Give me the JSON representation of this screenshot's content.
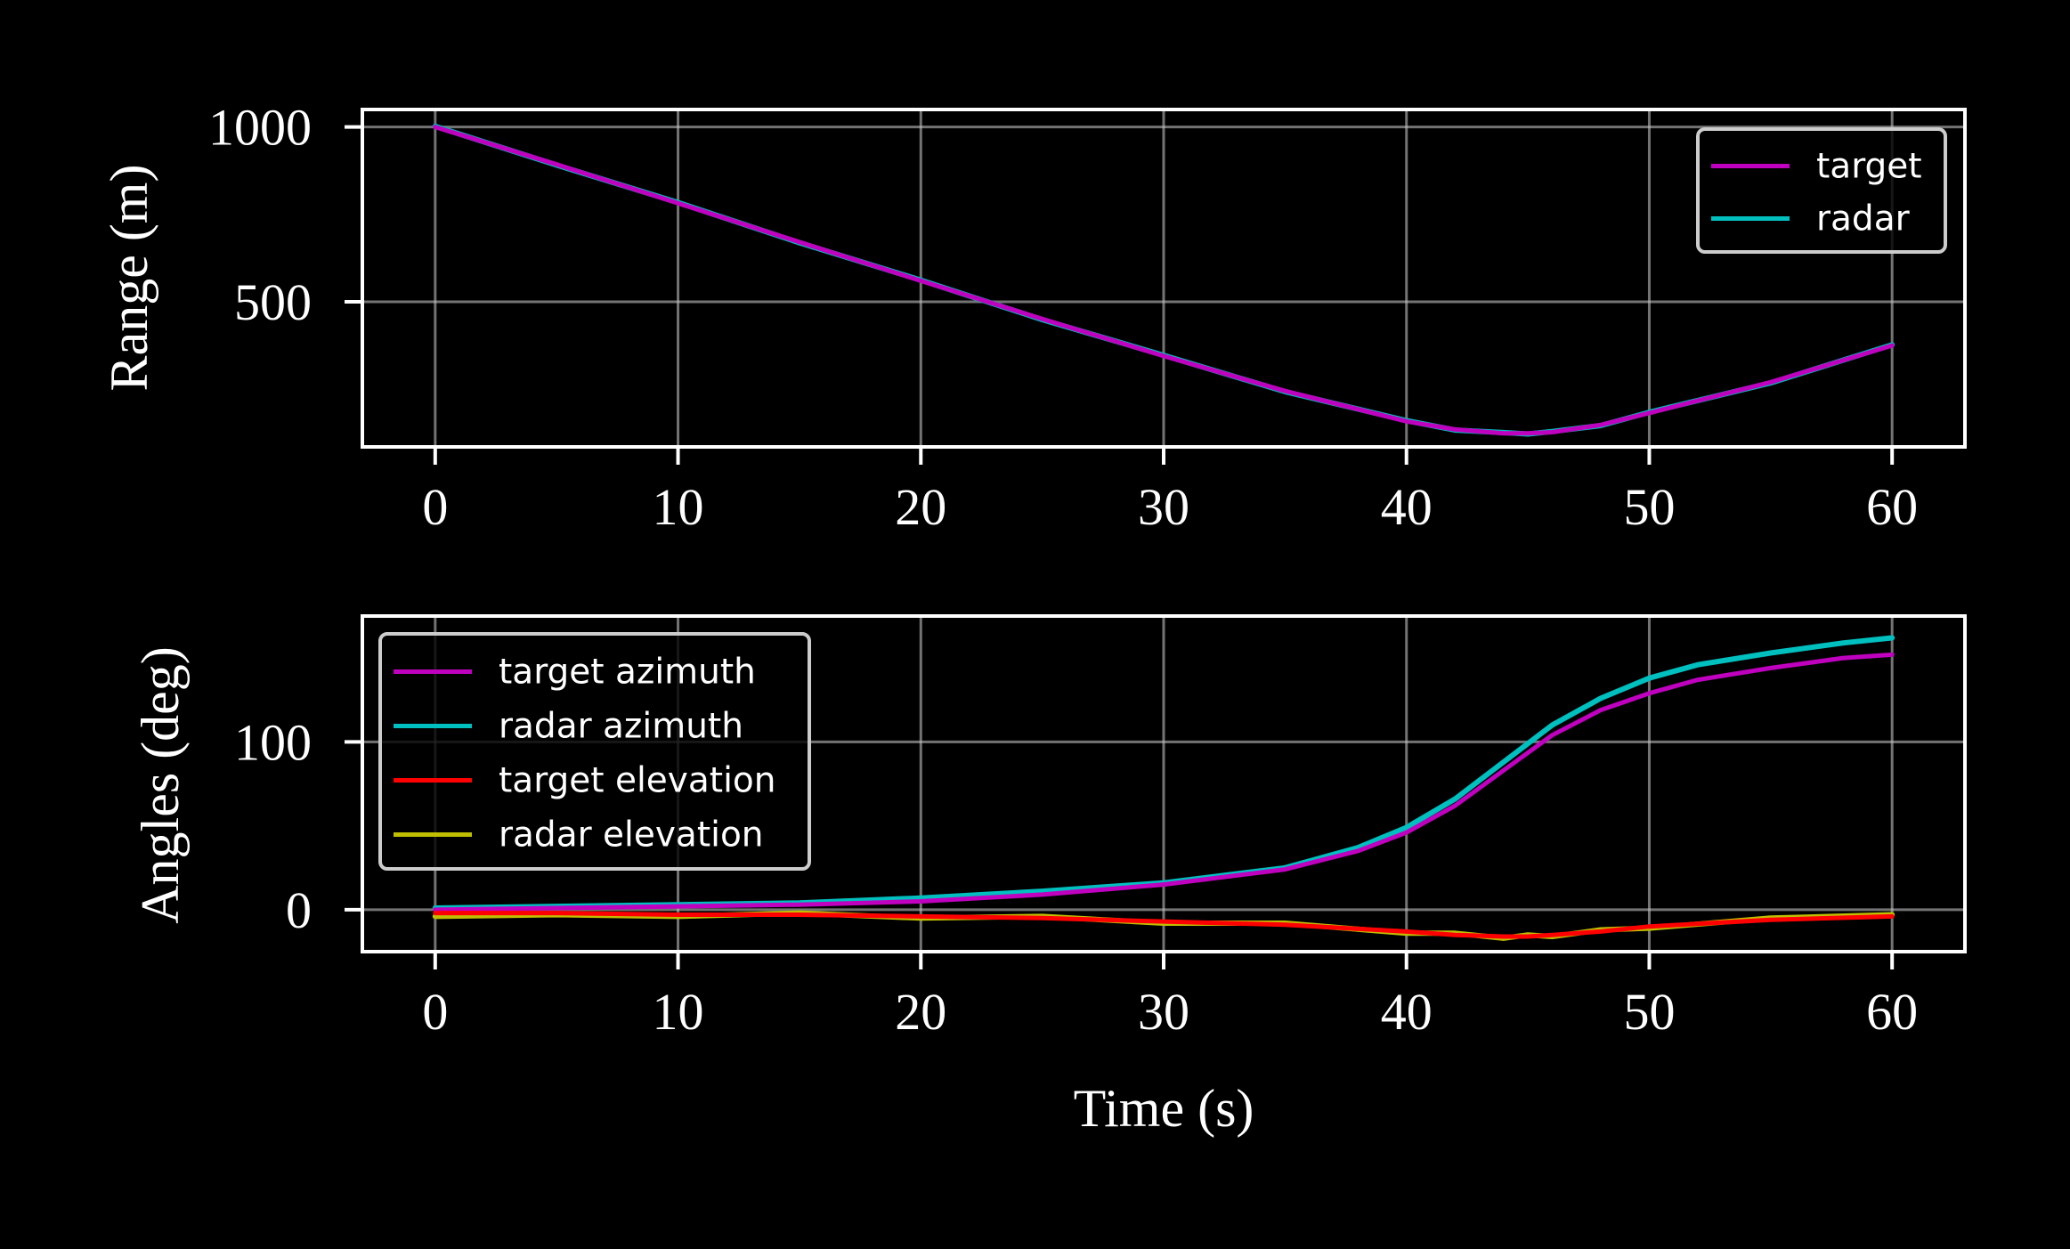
{
  "chart_data": [
    {
      "type": "line",
      "xlabel": "",
      "ylabel": "Range (m)",
      "xlim": [
        -3,
        63
      ],
      "ylim": [
        85,
        1050
      ],
      "x_ticks": [
        "0",
        "10",
        "20",
        "30",
        "40",
        "50",
        "60"
      ],
      "y_ticks": [
        "500",
        "1000"
      ],
      "grid": true,
      "legend_position": "upper right",
      "series": [
        {
          "name": "target",
          "color": "#bf00bf",
          "x": [
            0,
            5,
            10,
            15,
            20,
            25,
            30,
            35,
            40,
            42,
            44,
            45,
            46,
            48,
            50,
            55,
            60
          ],
          "y": [
            1000,
            893,
            782,
            671,
            560,
            451,
            345,
            245,
            158,
            135,
            124,
            124,
            127,
            148,
            182,
            270,
            375
          ]
        },
        {
          "name": "radar",
          "color": "#00bfbf",
          "x": [
            0,
            5,
            10,
            15,
            20,
            25,
            30,
            35,
            40,
            42,
            44,
            45,
            46,
            48,
            50,
            55,
            60
          ],
          "y": [
            1002,
            891,
            784,
            669,
            562,
            449,
            347,
            243,
            160,
            133,
            126,
            122,
            129,
            146,
            184,
            268,
            377
          ]
        }
      ]
    },
    {
      "type": "line",
      "xlabel": "Time (s)",
      "ylabel": "Angles (deg)",
      "xlim": [
        -3,
        63
      ],
      "ylim": [
        -25,
        175
      ],
      "x_ticks": [
        "0",
        "10",
        "20",
        "30",
        "40",
        "50",
        "60"
      ],
      "y_ticks": [
        "0",
        "100"
      ],
      "grid": true,
      "legend_position": "upper left",
      "series": [
        {
          "name": "target azimuth",
          "color": "#bf00bf",
          "x": [
            0,
            5,
            10,
            15,
            20,
            25,
            30,
            35,
            38,
            40,
            42,
            44,
            46,
            48,
            50,
            52,
            55,
            58,
            60
          ],
          "y": [
            0,
            1,
            2,
            3,
            5,
            9,
            15,
            24,
            35,
            46,
            62,
            83,
            104,
            119,
            129,
            137,
            144,
            150,
            152
          ]
        },
        {
          "name": "radar azimuth",
          "color": "#00bfbf",
          "x": [
            0,
            5,
            10,
            15,
            20,
            25,
            30,
            35,
            38,
            40,
            42,
            44,
            46,
            48,
            50,
            52,
            55,
            58,
            60
          ],
          "y": [
            1,
            2,
            3,
            4,
            7,
            11,
            16,
            25,
            37,
            49,
            66,
            88,
            110,
            126,
            138,
            146,
            153,
            159,
            162
          ]
        },
        {
          "name": "target elevation",
          "color": "#ff0000",
          "x": [
            0,
            5,
            10,
            15,
            20,
            25,
            30,
            35,
            40,
            42,
            44,
            45,
            46,
            48,
            50,
            55,
            60
          ],
          "y": [
            -2,
            -2,
            -3,
            -3,
            -4,
            -5,
            -7,
            -9,
            -13,
            -15,
            -16,
            -16,
            -15,
            -13,
            -10,
            -6,
            -4
          ]
        },
        {
          "name": "radar elevation",
          "color": "#bfbf00",
          "x": [
            0,
            5,
            10,
            15,
            20,
            25,
            30,
            35,
            40,
            42,
            44,
            45,
            46,
            48,
            50,
            55,
            60
          ],
          "y": [
            -4,
            -3,
            -4,
            -2,
            -5,
            -4,
            -8,
            -8,
            -14,
            -14,
            -17,
            -15,
            -16,
            -12,
            -11,
            -5,
            -3
          ]
        }
      ]
    }
  ]
}
